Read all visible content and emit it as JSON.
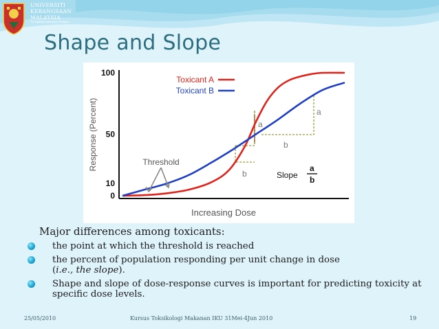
{
  "logo": {
    "line1": "UNIVERSITI",
    "line2": "KEBANGSAAN",
    "line3": "MALAYSIA",
    "tagline": "The National University of Malaysia"
  },
  "slide": {
    "title": "Shape and Slope",
    "intro": "Major differences among toxicants:",
    "bullets": [
      "the point at which the threshold is reached",
      "the percent of population responding per unit change in dose (i.e., the slope).",
      "Shape and slope of dose-response curves is important for predicting toxicity at specific dose levels."
    ],
    "bullet2_main": "the percent of population responding per unit change in dose",
    "bullet2_open": "(",
    "bullet2_ital": "i.e., the slope",
    "bullet2_close": ")."
  },
  "footer": {
    "date": "25/05/2010",
    "course": "Kursus Toksikologi Makanan IKU 31Mei-4Jun 2010",
    "page": "19"
  },
  "colors": {
    "toxicant_a": "#e0221a",
    "toxicant_b": "#1f3fc4",
    "guide": "#9a9a3a",
    "title": "#2d6e7e"
  },
  "chart_data": {
    "type": "line",
    "title": "",
    "xlabel": "Increasing Dose",
    "ylabel": "Response (Percent)",
    "yticks": [
      "0",
      "10",
      "50",
      "100"
    ],
    "ylim": [
      0,
      100
    ],
    "xlim": [
      0,
      10
    ],
    "series": [
      {
        "name": "Toxicant A",
        "color": "#e0221a",
        "x": [
          0,
          1,
          2,
          3,
          4,
          4.8,
          5.5,
          6,
          6.5,
          7,
          7.5,
          8,
          8.5,
          9,
          10
        ],
        "y": [
          0,
          0.5,
          2,
          5,
          11,
          21,
          40,
          60,
          77,
          88,
          94,
          97,
          99,
          100,
          100
        ]
      },
      {
        "name": "Toxicant B",
        "color": "#1f3fc4",
        "x": [
          0,
          1,
          2,
          3,
          4,
          5,
          5.5,
          6,
          7,
          8,
          9,
          10
        ],
        "y": [
          0,
          5,
          10,
          17,
          27,
          38,
          44,
          50,
          62,
          75,
          86,
          92
        ]
      }
    ],
    "annotations": [
      "Threshold",
      "a",
      "b",
      "a",
      "b"
    ],
    "slope_label": "Slope",
    "slope_numerator": "a",
    "slope_denominator": "b"
  }
}
